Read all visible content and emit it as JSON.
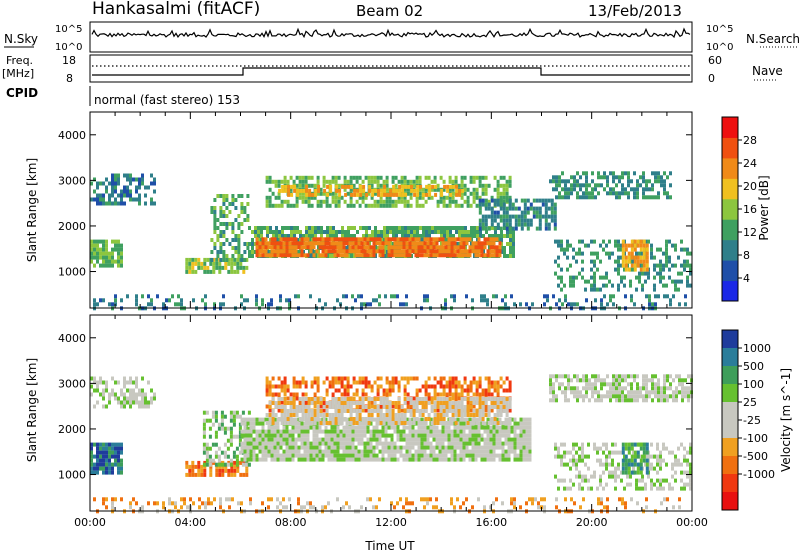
{
  "header": {
    "station": "Hankasalmi (fitACF)",
    "beam": "Beam 02",
    "date": "13/Feb/2013"
  },
  "panels": {
    "nsky": {
      "label": "N.Sky",
      "right_label": "N.Search",
      "ytick_top": "10^5",
      "ytick_bottom": "10^0"
    },
    "freq": {
      "label": "Freq.",
      "units": "[MHz]",
      "ytick_top": "18",
      "ytick_bottom": "8",
      "right_label": "Nave",
      "rtick_top": "60",
      "rtick_bottom": "0"
    },
    "cpid": {
      "label": "CPID",
      "text": "normal (fast stereo) 153"
    }
  },
  "colors": {
    "power": [
      "#1b28e6",
      "#1f4fa8",
      "#2f7f8a",
      "#3fa060",
      "#8cc63f",
      "#f0c020",
      "#f08a18",
      "#f05010",
      "#ee1010"
    ],
    "velocity": [
      "#1f3c9c",
      "#2a7d9a",
      "#3e9e5a",
      "#66c030",
      "#c8c8c0",
      "#c8c8c0",
      "#f0a020",
      "#f07010",
      "#f03810",
      "#e81010"
    ]
  },
  "chart_data": [
    {
      "type": "heatmap",
      "name": "power",
      "ylabel": "Slant Range [km]",
      "yticks": [
        "1000",
        "2000",
        "3000",
        "4000"
      ],
      "ylim": [
        200,
        4500
      ],
      "xlim": [
        0,
        24
      ],
      "colorbar": {
        "label": "Power [dB]",
        "ticks": [
          "4",
          "8",
          "12",
          "16",
          "20",
          "24",
          "28"
        ],
        "range": [
          0,
          32
        ]
      },
      "regions": [
        {
          "t0": 0.0,
          "t1": 2.6,
          "r0": 2450,
          "r1": 3150,
          "val": 8,
          "density": 0.55
        },
        {
          "t0": 0.0,
          "t1": 1.3,
          "r0": 1100,
          "r1": 1700,
          "val": 14,
          "density": 0.85
        },
        {
          "t0": 3.8,
          "t1": 6.3,
          "r0": 1020,
          "r1": 1300,
          "val": 16,
          "density": 0.8
        },
        {
          "t0": 4.8,
          "t1": 6.3,
          "r0": 1250,
          "r1": 2700,
          "val": 12,
          "density": 0.45
        },
        {
          "t0": 6.3,
          "t1": 16.9,
          "r0": 1300,
          "r1": 2000,
          "val": 12,
          "density": 0.8
        },
        {
          "t0": 6.6,
          "t1": 16.4,
          "r0": 1350,
          "r1": 1750,
          "val": 26,
          "density": 0.9
        },
        {
          "t0": 7.0,
          "t1": 16.7,
          "r0": 2400,
          "r1": 3100,
          "val": 14,
          "density": 0.65
        },
        {
          "t0": 7.5,
          "t1": 15.0,
          "r0": 2650,
          "r1": 2900,
          "val": 22,
          "density": 0.6
        },
        {
          "t0": 15.5,
          "t1": 18.5,
          "r0": 1900,
          "r1": 2600,
          "val": 9,
          "density": 0.7
        },
        {
          "t0": 18.3,
          "t1": 23.2,
          "r0": 2600,
          "r1": 3200,
          "val": 10,
          "density": 0.65
        },
        {
          "t0": 18.5,
          "t1": 24.0,
          "r0": 600,
          "r1": 1700,
          "val": 10,
          "density": 0.35
        },
        {
          "t0": 21.2,
          "t1": 22.2,
          "r0": 1050,
          "r1": 1700,
          "val": 22,
          "density": 0.8
        },
        {
          "t0": 0.0,
          "t1": 24.0,
          "r0": 200,
          "r1": 500,
          "val": 8,
          "density": 0.25
        }
      ]
    },
    {
      "type": "heatmap",
      "name": "velocity",
      "ylabel": "Slant Range [km]",
      "xlabel": "Time UT",
      "xticks": [
        "00:00",
        "04:00",
        "08:00",
        "12:00",
        "16:00",
        "20:00",
        "00:00"
      ],
      "yticks": [
        "1000",
        "2000",
        "3000",
        "4000"
      ],
      "ylim": [
        200,
        4500
      ],
      "xlim": [
        0,
        24
      ],
      "colorbar": {
        "label": "Velocity [m s^-1]",
        "ticks": [
          "1000",
          "500",
          "100",
          "25",
          "-25",
          "-100",
          "-500",
          "-1000"
        ]
      },
      "regions": [
        {
          "t0": 0.0,
          "t1": 2.6,
          "r0": 2450,
          "r1": 3150,
          "val": 4,
          "density": 0.55
        },
        {
          "t0": 0.0,
          "t1": 1.3,
          "r0": 1050,
          "r1": 1700,
          "val": 1,
          "density": 0.85
        },
        {
          "t0": 3.8,
          "t1": 6.3,
          "r0": 1000,
          "r1": 1300,
          "val": 7,
          "density": 0.8
        },
        {
          "t0": 4.5,
          "t1": 6.3,
          "r0": 1250,
          "r1": 2400,
          "val": 3,
          "density": 0.5
        },
        {
          "t0": 6.0,
          "t1": 17.5,
          "r0": 1350,
          "r1": 2250,
          "val": 4,
          "density": 0.9
        },
        {
          "t0": 7.0,
          "t1": 16.7,
          "r0": 2400,
          "r1": 3150,
          "val": 7,
          "density": 0.55
        },
        {
          "t0": 7.0,
          "t1": 16.7,
          "r0": 2100,
          "r1": 2700,
          "val": 5,
          "density": 0.75
        },
        {
          "t0": 18.3,
          "t1": 24.0,
          "r0": 2600,
          "r1": 3200,
          "val": 4,
          "density": 0.7
        },
        {
          "t0": 18.5,
          "t1": 24.0,
          "r0": 700,
          "r1": 1700,
          "val": 4,
          "density": 0.4
        },
        {
          "t0": 21.2,
          "t1": 22.2,
          "r0": 1000,
          "r1": 1700,
          "val": 2,
          "density": 0.8
        },
        {
          "t0": 0.0,
          "t1": 24.0,
          "r0": 200,
          "r1": 500,
          "val": 6,
          "density": 0.25
        }
      ]
    }
  ]
}
